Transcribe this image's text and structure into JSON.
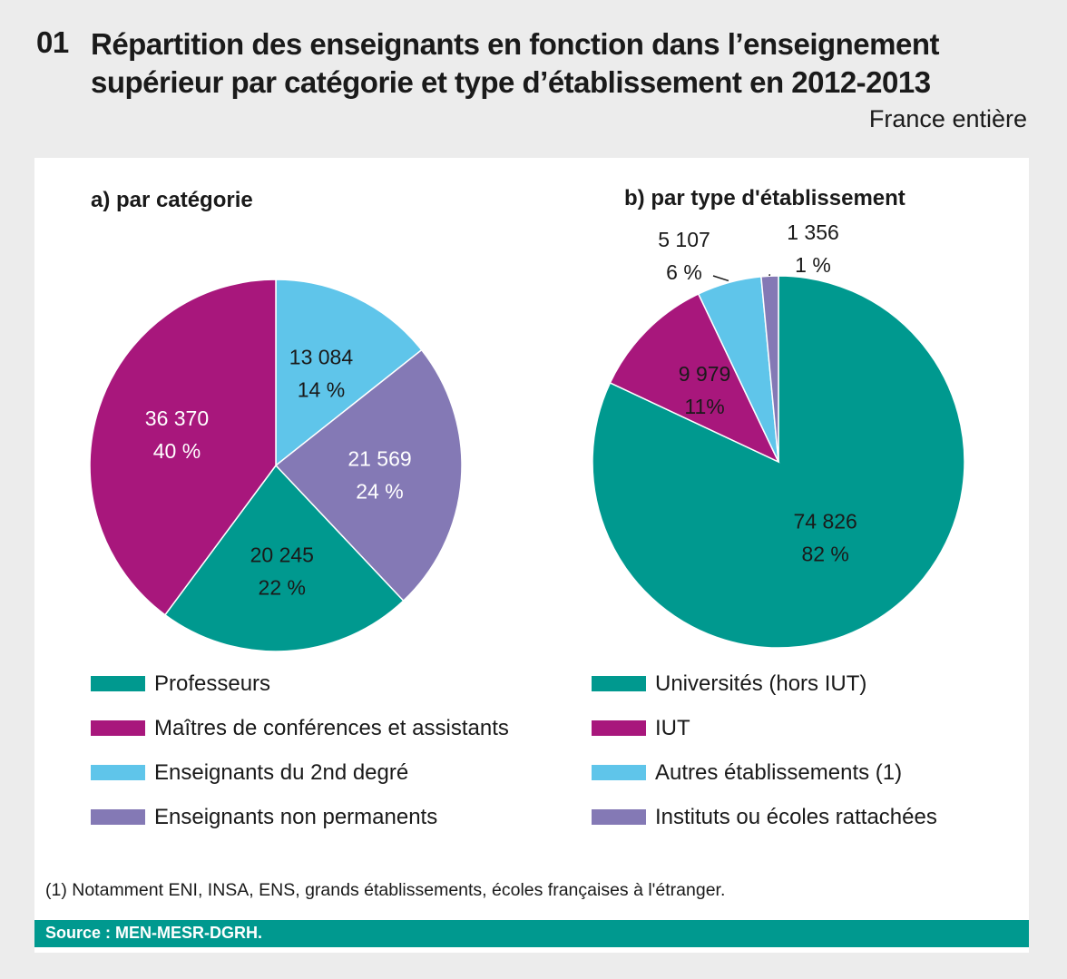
{
  "figure": {
    "number": "01",
    "title": "Répartition des enseignants en fonction dans l’enseignement supérieur par catégorie et type d’établissement en 2012-2013",
    "scope": "France entière",
    "footnote": "(1) Notamment ENI, INSA, ENS, grands établissements, écoles françaises à l'étranger.",
    "source": "Source : MEN-MESR-DGRH."
  },
  "colors": {
    "teal": "#00998f",
    "magenta": "#a8177c",
    "light_blue": "#5fc5ea",
    "purple": "#8479b5"
  },
  "chart_data": [
    {
      "type": "pie",
      "title": "a) par catégorie",
      "categories": [
        "Professeurs",
        "Maîtres de conférences et assistants",
        "Enseignants du 2nd degré",
        "Enseignants non permanents"
      ],
      "values": [
        20245,
        36370,
        13084,
        21569
      ],
      "value_labels": [
        "20 245",
        "36 370",
        "13 084",
        "21 569"
      ],
      "percent_labels": [
        "22 %",
        "40 %",
        "14 %",
        "24 %"
      ],
      "colors": [
        "#00998f",
        "#a8177c",
        "#5fc5ea",
        "#8479b5"
      ],
      "slice_order": [
        "Enseignants du 2nd degré",
        "Enseignants non permanents",
        "Professeurs",
        "Maîtres de conférences et assistants"
      ],
      "start": "12 o'clock, clockwise",
      "label_text_color": [
        "#1a1a1a",
        "#ffffff",
        "#1a1a1a",
        "#ffffff"
      ]
    },
    {
      "type": "pie",
      "title": "b) par type d'établissement",
      "categories": [
        "Universités (hors IUT)",
        "IUT",
        "Autres établissements (1)",
        "Instituts ou écoles rattachées"
      ],
      "values": [
        74826,
        9979,
        5107,
        1356
      ],
      "value_labels": [
        "74 826",
        "9 979",
        "5 107",
        "1 356"
      ],
      "percent_labels": [
        "82 %",
        "11%",
        "6 %",
        "1 %"
      ],
      "colors": [
        "#00998f",
        "#a8177c",
        "#5fc5ea",
        "#8479b5"
      ],
      "slice_order": [
        "Universités (hors IUT)",
        "IUT",
        "Autres établissements (1)",
        "Instituts ou écoles rattachées"
      ],
      "start": "12 o'clock, clockwise",
      "outside_labels": [
        "Autres établissements (1)",
        "Instituts ou écoles rattachées"
      ]
    }
  ]
}
